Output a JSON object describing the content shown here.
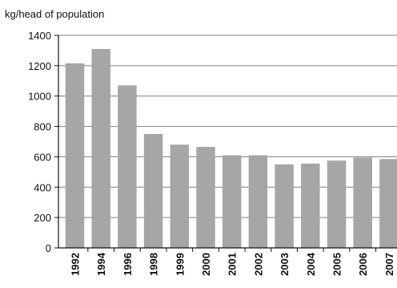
{
  "chart_data": {
    "type": "bar",
    "title": "",
    "ylabel": "kg/head of population",
    "xlabel": "",
    "categories": [
      "1992",
      "1994",
      "1996",
      "1998",
      "1999",
      "2000",
      "2001",
      "2002",
      "2003",
      "2004",
      "2005",
      "2006",
      "2007"
    ],
    "values": [
      1215,
      1310,
      1070,
      750,
      680,
      665,
      610,
      610,
      550,
      555,
      575,
      595,
      585
    ],
    "ylim": [
      0,
      1400
    ],
    "yticks": [
      "0",
      "200",
      "400",
      "600",
      "800",
      "1000",
      "1200",
      "1400"
    ],
    "grid": true,
    "bar_color": "#a6a6a6",
    "grid_color": "#7f7f7f"
  }
}
